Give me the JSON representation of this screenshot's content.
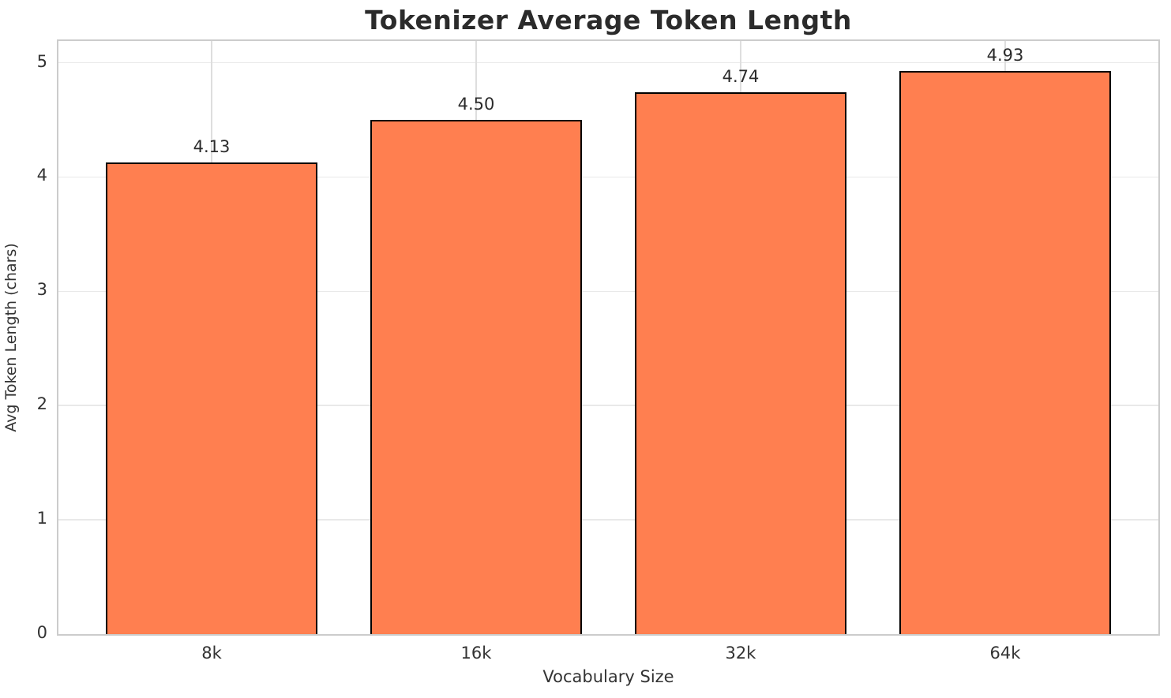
{
  "chart_data": {
    "type": "bar",
    "title": "Tokenizer Average Token Length",
    "xlabel": "Vocabulary Size",
    "ylabel": "Avg Token Length (chars)",
    "categories": [
      "8k",
      "16k",
      "32k",
      "64k"
    ],
    "values": [
      4.13,
      4.5,
      4.74,
      4.93
    ],
    "value_labels": [
      "4.13",
      "4.50",
      "4.74",
      "4.93"
    ],
    "yticks": [
      0,
      1,
      2,
      3,
      4,
      5
    ],
    "ytick_labels": [
      "0",
      "1",
      "2",
      "3",
      "4",
      "5"
    ],
    "ylim": [
      0,
      5.19
    ],
    "grid": true,
    "legend": false,
    "colors": {
      "bar_fill": "#FF7F50",
      "bar_edge": "#000000",
      "spine": "#cccccc",
      "grid_h": "#e9e9e9",
      "grid_v": "#dedede",
      "title_text": "#2b2b2b",
      "tick_text": "#333333"
    }
  }
}
